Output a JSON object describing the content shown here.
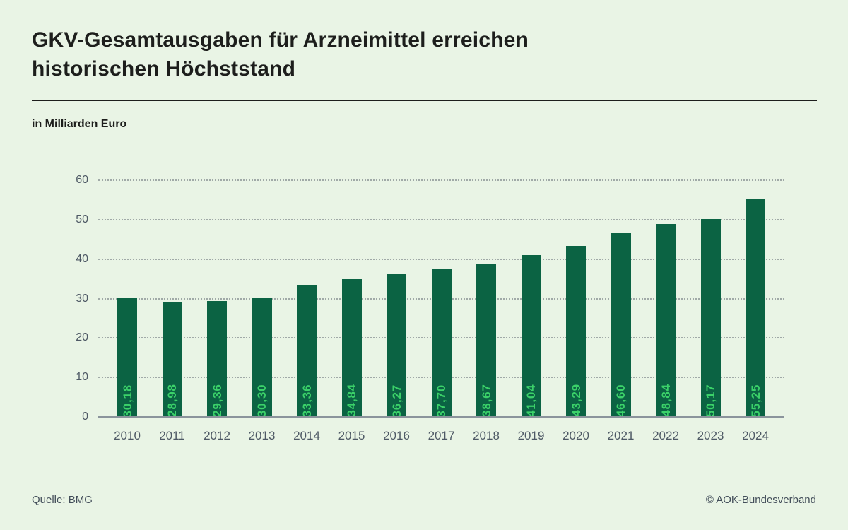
{
  "header": {
    "title_line1": "GKV-Gesamtausgaben für Arzneimittel erreichen",
    "title_line2": "historischen Höchststand",
    "unit_label": "in Milliarden Euro"
  },
  "footer": {
    "source": "Quelle: BMG",
    "copyright": "© AOK-Bundesverband"
  },
  "colors": {
    "background": "#e9f4e5",
    "title_text": "#1d1e1c",
    "bar_fill": "#0b6343",
    "bar_value_text": "#3bd169",
    "axis_text": "#4e5965",
    "gridline": "#a0a9a7",
    "axis_line": "#8b949c",
    "footer_text": "#434e5a"
  },
  "chart_data": {
    "type": "bar",
    "title": "GKV-Gesamtausgaben für Arzneimittel erreichen historischen Höchststand",
    "subtitle": "in Milliarden Euro",
    "categories": [
      "2010",
      "2011",
      "2012",
      "2013",
      "2014",
      "2015",
      "2016",
      "2017",
      "2018",
      "2019",
      "2020",
      "2021",
      "2022",
      "2023",
      "2024"
    ],
    "values": [
      30.18,
      28.98,
      29.36,
      30.3,
      33.36,
      34.84,
      36.27,
      37.7,
      38.67,
      41.04,
      43.29,
      46.6,
      48.84,
      50.17,
      55.25
    ],
    "value_labels": [
      "30,18",
      "28,98",
      "29,36",
      "30,30",
      "33,36",
      "34,84",
      "36,27",
      "37,70",
      "38,67",
      "41,04",
      "43,29",
      "46,60",
      "48,84",
      "50,17",
      "55,25"
    ],
    "xlabel": "",
    "ylabel": "in Milliarden Euro",
    "ylim": [
      0,
      60
    ],
    "yticks": [
      0,
      10,
      20,
      30,
      40,
      50,
      60
    ],
    "grid": "horizontal-dotted",
    "legend": "none",
    "value_label_orientation": "vertical-inside-bar-top"
  }
}
